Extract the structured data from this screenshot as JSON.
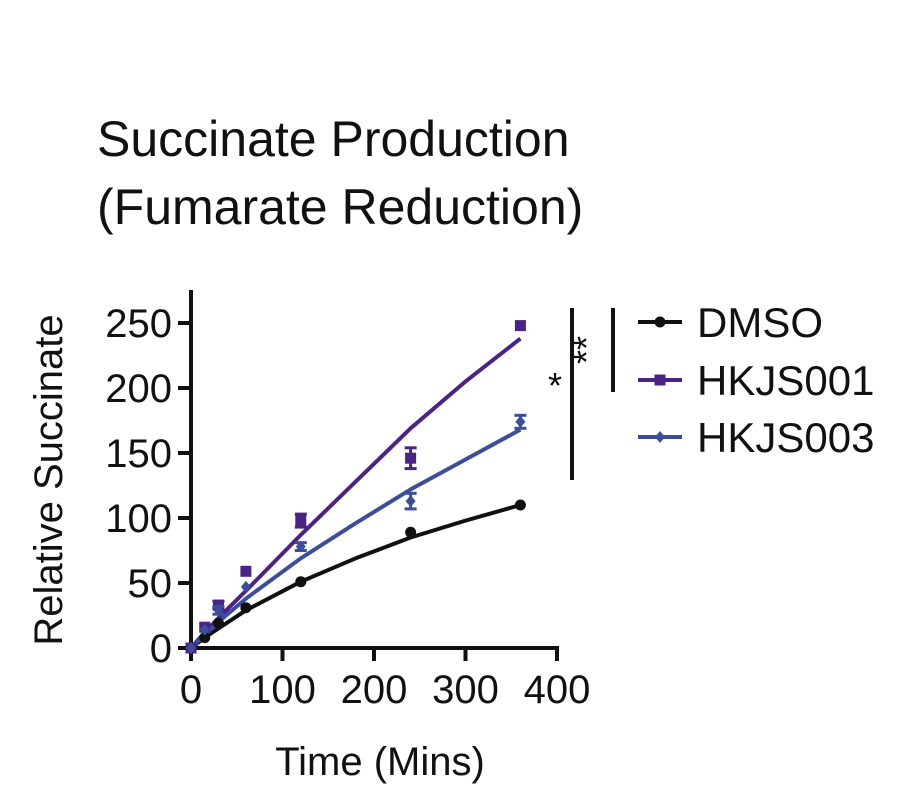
{
  "chart_data": {
    "type": "scatter",
    "title": [
      "Succinate Production",
      "(Fumarate Reduction)"
    ],
    "xlabel": "Time (Mins)",
    "ylabel": "Relative Succinate",
    "xlim": [
      0,
      400
    ],
    "ylim": [
      0,
      270
    ],
    "xticks": [
      "0",
      "100",
      "200",
      "300",
      "400"
    ],
    "yticks": [
      "0",
      "50",
      "100",
      "150",
      "200",
      "250"
    ],
    "grid": false,
    "legend_position": "right",
    "series": [
      {
        "name": "DMSO",
        "color": "#111111",
        "marker": "circle",
        "points": [
          [
            0,
            0
          ],
          [
            15,
            8
          ],
          [
            30,
            19
          ],
          [
            60,
            31
          ],
          [
            120,
            51
          ],
          [
            240,
            89
          ],
          [
            360,
            110
          ]
        ],
        "error": [
          0,
          0,
          0,
          0,
          0,
          0,
          0
        ],
        "fit": [
          [
            0,
            0
          ],
          [
            15,
            8
          ],
          [
            30,
            15
          ],
          [
            60,
            29
          ],
          [
            120,
            51
          ],
          [
            180,
            69
          ],
          [
            240,
            85
          ],
          [
            300,
            98
          ],
          [
            360,
            110
          ]
        ]
      },
      {
        "name": "HKJS001",
        "color": "#4b2386",
        "marker": "square",
        "points": [
          [
            0,
            0
          ],
          [
            15,
            16
          ],
          [
            30,
            33
          ],
          [
            60,
            59
          ],
          [
            120,
            98
          ],
          [
            240,
            146
          ],
          [
            360,
            248
          ]
        ],
        "error": [
          0,
          0,
          3,
          0,
          5,
          8,
          0
        ],
        "fit": [
          [
            0,
            0
          ],
          [
            15,
            12
          ],
          [
            30,
            23
          ],
          [
            60,
            44
          ],
          [
            120,
            87
          ],
          [
            180,
            128
          ],
          [
            240,
            169
          ],
          [
            300,
            205
          ],
          [
            360,
            238
          ]
        ]
      },
      {
        "name": "HKJS003",
        "color": "#3a4e9c",
        "marker": "diamond",
        "points": [
          [
            0,
            0
          ],
          [
            15,
            14
          ],
          [
            30,
            29
          ],
          [
            60,
            47
          ],
          [
            120,
            78
          ],
          [
            240,
            113
          ],
          [
            360,
            174
          ]
        ],
        "error": [
          0,
          0,
          3,
          0,
          3,
          6,
          5
        ],
        "fit": [
          [
            0,
            0
          ],
          [
            15,
            10
          ],
          [
            30,
            20
          ],
          [
            60,
            38
          ],
          [
            120,
            69
          ],
          [
            180,
            96
          ],
          [
            240,
            122
          ],
          [
            300,
            145
          ],
          [
            360,
            168
          ]
        ]
      }
    ],
    "significance": [
      {
        "label": "*",
        "series": [
          "DMSO",
          "HKJS003"
        ]
      },
      {
        "label": "**",
        "series": [
          "DMSO",
          "HKJS001"
        ]
      }
    ]
  }
}
